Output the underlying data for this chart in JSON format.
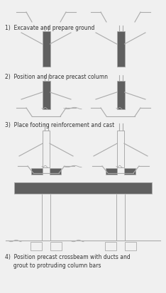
{
  "bg_color": "#f0f0f0",
  "line_color": "#aaaaaa",
  "dark_gray": "#606060",
  "text_color": "#333333",
  "step_labels": [
    "1)  Excavate and prepare ground",
    "2)  Position and brace precast column",
    "3)  Place footing reinforcement and cast",
    "4)  Position precast crossbeam with ducts and\n     grout to protruding column bars"
  ],
  "fig_width": 2.34,
  "fig_height": 4.14,
  "dpi": 100
}
